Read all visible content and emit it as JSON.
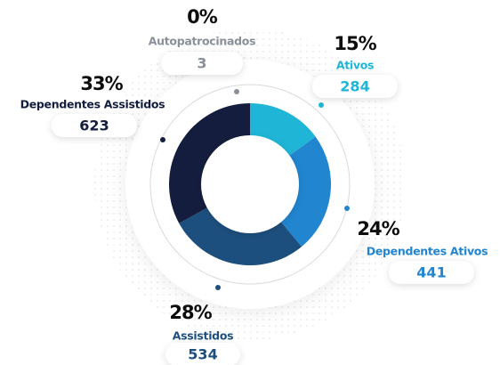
{
  "chart_data": {
    "type": "donut",
    "categories": [
      "Autopatrocinados",
      "Ativos",
      "Dependentes Ativos",
      "Assistidos",
      "Dependentes Assistidos"
    ],
    "values": [
      0,
      15,
      24,
      28,
      33
    ],
    "value_labels": [
      "0%",
      "15%",
      "24%",
      "28%",
      "33%"
    ],
    "counts": [
      3,
      284,
      441,
      534,
      623
    ],
    "colors": [
      "#8a8f99",
      "#1fb5d6",
      "#2185d0",
      "#1d4f7e",
      "#141d3d"
    ]
  }
}
